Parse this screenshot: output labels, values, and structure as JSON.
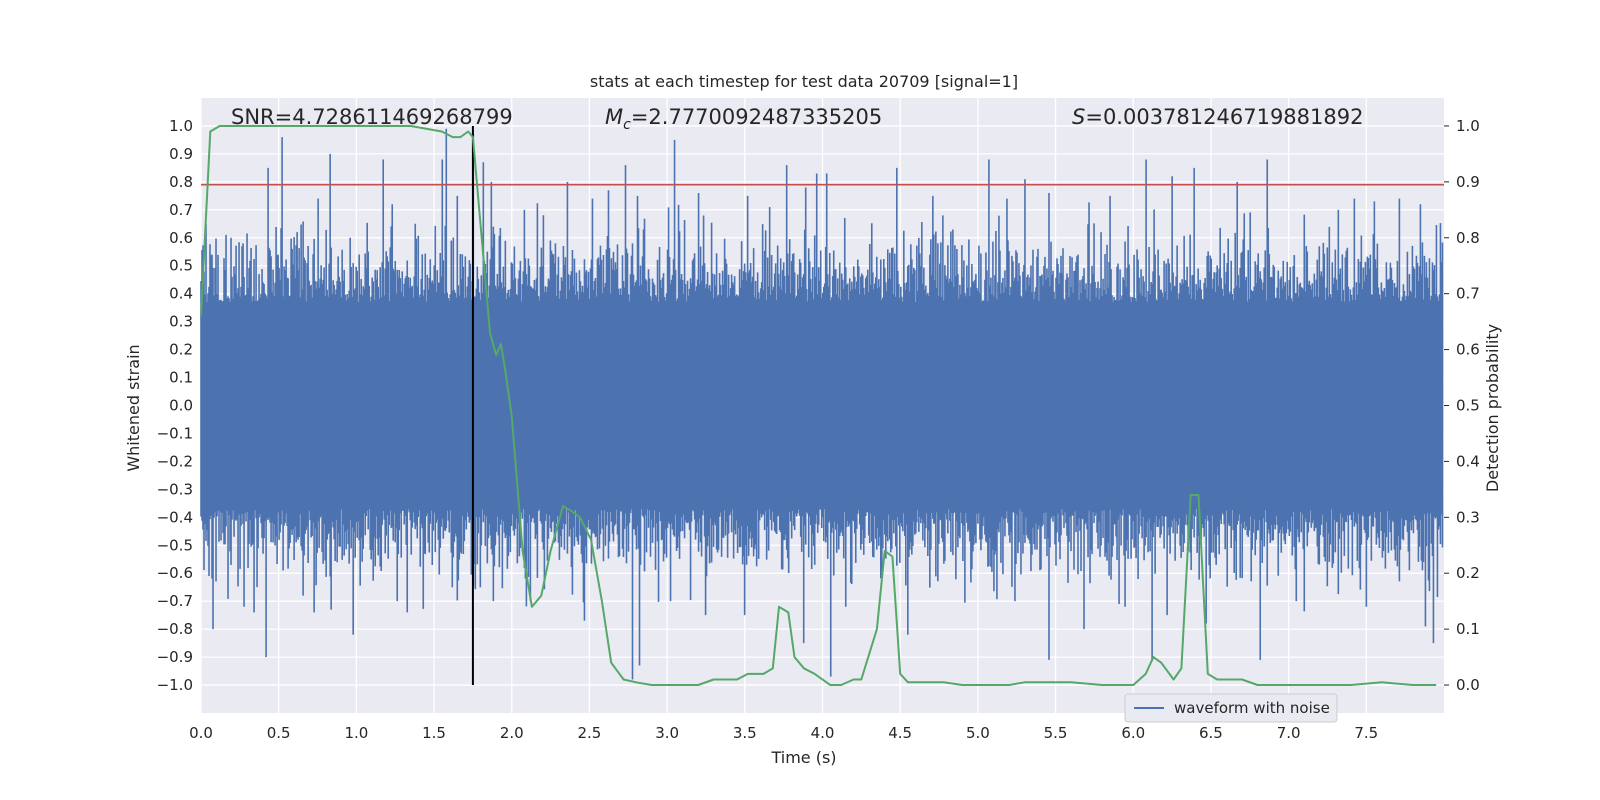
{
  "chart_data": {
    "type": "line",
    "title": "stats at each timestep for test data 20709 [signal=1]",
    "xlabel": "Time (s)",
    "ylabel_left": "Whitened strain",
    "ylabel_right": "Detection probability",
    "xlim": [
      0.0,
      8.0
    ],
    "ylim_left": [
      -1.1,
      1.1
    ],
    "ylim_right": [
      -0.05,
      1.05
    ],
    "grid": true,
    "x_ticks": [
      0.0,
      0.5,
      1.0,
      1.5,
      2.0,
      2.5,
      3.0,
      3.5,
      4.0,
      4.5,
      5.0,
      5.5,
      6.0,
      6.5,
      7.0,
      7.5
    ],
    "x_tick_labels": [
      "0.0",
      "0.5",
      "1.0",
      "1.5",
      "2.0",
      "2.5",
      "3.0",
      "3.5",
      "4.0",
      "4.5",
      "5.0",
      "5.5",
      "6.0",
      "6.5",
      "7.0",
      "7.5"
    ],
    "y_left_ticks": [
      1.0,
      0.9,
      0.8,
      0.7,
      0.6,
      0.5,
      0.4,
      0.3,
      0.2,
      0.1,
      0.0,
      -0.1,
      -0.2,
      -0.3,
      -0.4,
      -0.5,
      -0.6,
      -0.7,
      -0.8,
      -0.9,
      -1.0
    ],
    "y_left_tick_labels": [
      "1.0",
      "0.9",
      "0.8",
      "0.7",
      "0.6",
      "0.5",
      "0.4",
      "0.3",
      "0.2",
      "0.1",
      "0.0",
      "−0.1",
      "−0.2",
      "−0.3",
      "−0.4",
      "−0.5",
      "−0.6",
      "−0.7",
      "−0.8",
      "−0.9",
      "−1.0"
    ],
    "y_right_ticks": [
      1.0,
      0.9,
      0.8,
      0.7,
      0.6,
      0.5,
      0.4,
      0.3,
      0.2,
      0.1,
      0.0
    ],
    "y_right_tick_labels": [
      "1.0",
      "0.9",
      "0.8",
      "0.7",
      "0.6",
      "0.5",
      "0.4",
      "0.3",
      "0.2",
      "0.1",
      "0.0"
    ],
    "annotations": {
      "snr": "SNR=4.728611469268799",
      "mc_symbol": "M",
      "mc_subscript": "c",
      "mc_value": "=2.7770092487335205",
      "s_symbol": "S",
      "s_value": "=0.003781246719881892"
    },
    "threshold": {
      "value": 0.79,
      "color": "#c44e52"
    },
    "marker_line": {
      "x": 1.75,
      "y0": -1.0,
      "y1": 1.0,
      "color": "#000000"
    },
    "waveform": {
      "name": "waveform with noise",
      "color": "#4c72b0",
      "start": 0.0,
      "end": 7.99,
      "typical_envelope": 0.4,
      "random_seed": 20709,
      "peaks_positive": [
        [
          0.03,
          0.65
        ],
        [
          0.27,
          0.58
        ],
        [
          0.43,
          0.85
        ],
        [
          0.52,
          0.96
        ],
        [
          0.62,
          0.62
        ],
        [
          0.83,
          0.9
        ],
        [
          0.96,
          0.6
        ],
        [
          1.17,
          0.88
        ],
        [
          1.23,
          0.72
        ],
        [
          1.38,
          0.65
        ],
        [
          1.55,
          0.88
        ],
        [
          1.58,
          0.99
        ],
        [
          1.65,
          0.75
        ],
        [
          1.75,
          0.97
        ],
        [
          1.82,
          0.87
        ],
        [
          1.87,
          0.8
        ],
        [
          2.08,
          0.7
        ],
        [
          2.36,
          0.8
        ],
        [
          2.52,
          0.74
        ],
        [
          2.62,
          0.77
        ],
        [
          2.73,
          0.86
        ],
        [
          2.81,
          0.75
        ],
        [
          3.05,
          0.95
        ],
        [
          3.2,
          0.76
        ],
        [
          3.52,
          0.75
        ],
        [
          3.66,
          0.71
        ],
        [
          3.77,
          0.86
        ],
        [
          3.89,
          0.78
        ],
        [
          3.96,
          0.83
        ],
        [
          4.03,
          0.83
        ],
        [
          4.48,
          0.85
        ],
        [
          4.71,
          0.75
        ],
        [
          5.07,
          0.88
        ],
        [
          5.3,
          0.81
        ],
        [
          5.46,
          0.76
        ],
        [
          5.85,
          0.75
        ],
        [
          6.08,
          0.88
        ],
        [
          6.25,
          0.82
        ],
        [
          6.39,
          0.85
        ],
        [
          6.67,
          0.8
        ],
        [
          6.86,
          0.88
        ],
        [
          7.32,
          0.7
        ],
        [
          7.55,
          0.73
        ],
        [
          7.71,
          0.74
        ],
        [
          7.85,
          0.72
        ]
      ],
      "peaks_negative": [
        [
          0.05,
          -0.61
        ],
        [
          0.08,
          -0.8
        ],
        [
          0.28,
          -0.72
        ],
        [
          0.42,
          -0.9
        ],
        [
          0.66,
          -0.68
        ],
        [
          0.84,
          -0.73
        ],
        [
          0.98,
          -0.82
        ],
        [
          1.26,
          -0.7
        ],
        [
          1.33,
          -0.74
        ],
        [
          1.62,
          -0.65
        ],
        [
          1.8,
          -0.65
        ],
        [
          1.88,
          -0.7
        ],
        [
          2.12,
          -0.7
        ],
        [
          2.47,
          -0.77
        ],
        [
          2.78,
          -0.98
        ],
        [
          2.82,
          -0.93
        ],
        [
          3.02,
          -0.7
        ],
        [
          3.25,
          -0.75
        ],
        [
          3.5,
          -0.75
        ],
        [
          3.88,
          -0.85
        ],
        [
          4.05,
          -0.97
        ],
        [
          4.15,
          -0.72
        ],
        [
          4.55,
          -0.82
        ],
        [
          5.24,
          -0.7
        ],
        [
          5.46,
          -0.91
        ],
        [
          5.68,
          -0.8
        ],
        [
          5.95,
          -0.72
        ],
        [
          6.12,
          -0.91
        ],
        [
          6.22,
          -0.75
        ],
        [
          6.47,
          -0.78
        ],
        [
          6.82,
          -0.91
        ],
        [
          7.05,
          -0.7
        ],
        [
          7.5,
          -0.72
        ],
        [
          7.88,
          -0.79
        ],
        [
          7.93,
          -0.85
        ]
      ]
    },
    "detection_probability": {
      "name": "detection probability",
      "color": "#55a868",
      "x": [
        0.0,
        0.06,
        0.12,
        0.25,
        0.5,
        1.0,
        1.35,
        1.55,
        1.62,
        1.67,
        1.72,
        1.75,
        1.8,
        1.86,
        1.9,
        1.93,
        1.96,
        2.0,
        2.07,
        2.13,
        2.19,
        2.25,
        2.33,
        2.39,
        2.44,
        2.51,
        2.58,
        2.64,
        2.72,
        2.8,
        2.9,
        3.0,
        3.1,
        3.2,
        3.3,
        3.38,
        3.45,
        3.52,
        3.62,
        3.68,
        3.72,
        3.78,
        3.82,
        3.88,
        3.95,
        4.0,
        4.05,
        4.12,
        4.2,
        4.25,
        4.35,
        4.4,
        4.45,
        4.5,
        4.55,
        4.62,
        4.7,
        4.78,
        4.9,
        5.0,
        5.2,
        5.3,
        5.42,
        5.6,
        5.8,
        6.0,
        6.08,
        6.13,
        6.18,
        6.26,
        6.31,
        6.37,
        6.42,
        6.48,
        6.54,
        6.6,
        6.7,
        6.8,
        7.0,
        7.2,
        7.4,
        7.6,
        7.8,
        7.95
      ],
      "y": [
        0.66,
        0.99,
        1.0,
        1.0,
        1.0,
        1.0,
        1.0,
        0.99,
        0.98,
        0.98,
        0.99,
        0.98,
        0.82,
        0.63,
        0.59,
        0.61,
        0.56,
        0.48,
        0.24,
        0.14,
        0.16,
        0.24,
        0.32,
        0.31,
        0.3,
        0.26,
        0.15,
        0.04,
        0.01,
        0.005,
        0.0,
        0.0,
        0.0,
        0.0,
        0.01,
        0.01,
        0.01,
        0.02,
        0.02,
        0.03,
        0.14,
        0.13,
        0.05,
        0.03,
        0.02,
        0.01,
        0.0,
        0.0,
        0.01,
        0.01,
        0.1,
        0.24,
        0.23,
        0.02,
        0.005,
        0.005,
        0.005,
        0.005,
        0.0,
        0.0,
        0.0,
        0.005,
        0.005,
        0.005,
        0.0,
        0.0,
        0.02,
        0.05,
        0.04,
        0.01,
        0.03,
        0.34,
        0.34,
        0.02,
        0.01,
        0.01,
        0.01,
        0.0,
        0.0,
        0.0,
        0.0,
        0.005,
        0.0,
        0.0
      ]
    },
    "legend": {
      "placement": "bottom-right",
      "label": "waveform with noise"
    }
  }
}
